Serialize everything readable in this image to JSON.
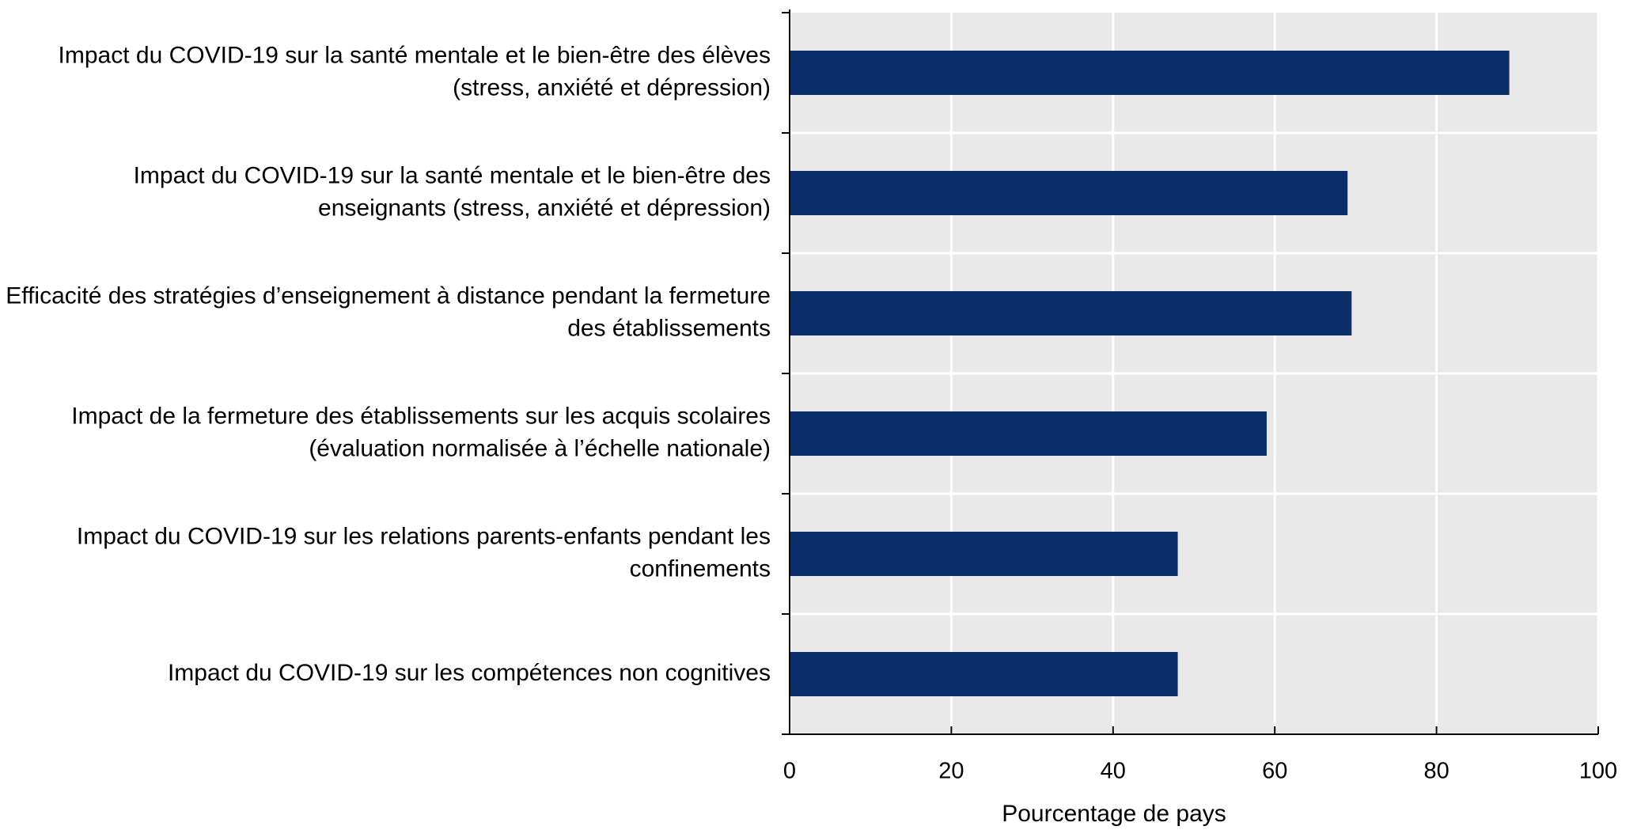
{
  "chart_data": {
    "type": "bar",
    "orientation": "horizontal",
    "categories": [
      [
        "Impact du COVID-19 sur la santé mentale et le bien-être des élèves",
        "(stress, anxiété et dépression)"
      ],
      [
        "Impact du COVID-19 sur la santé mentale et le bien-être des",
        "enseignants (stress, anxiété et dépression)"
      ],
      [
        "Efficacité des stratégies d’enseignement à distance pendant la fermeture",
        "des établissements"
      ],
      [
        "Impact de la fermeture des établissements sur les acquis scolaires",
        "(évaluation normalisée à l’échelle nationale)"
      ],
      [
        "Impact du COVID-19 sur les relations parents-enfants pendant les",
        "confinements"
      ],
      [
        "Impact du COVID-19 sur les compétences non cognitives"
      ]
    ],
    "values": [
      89,
      69,
      69.5,
      59,
      48,
      48
    ],
    "color": "#0a2f6b",
    "xlabel": "Pourcentage de pays",
    "xlim": [
      0,
      100
    ],
    "xticks": [
      0,
      20,
      40,
      60,
      80,
      100
    ],
    "grid": true
  }
}
